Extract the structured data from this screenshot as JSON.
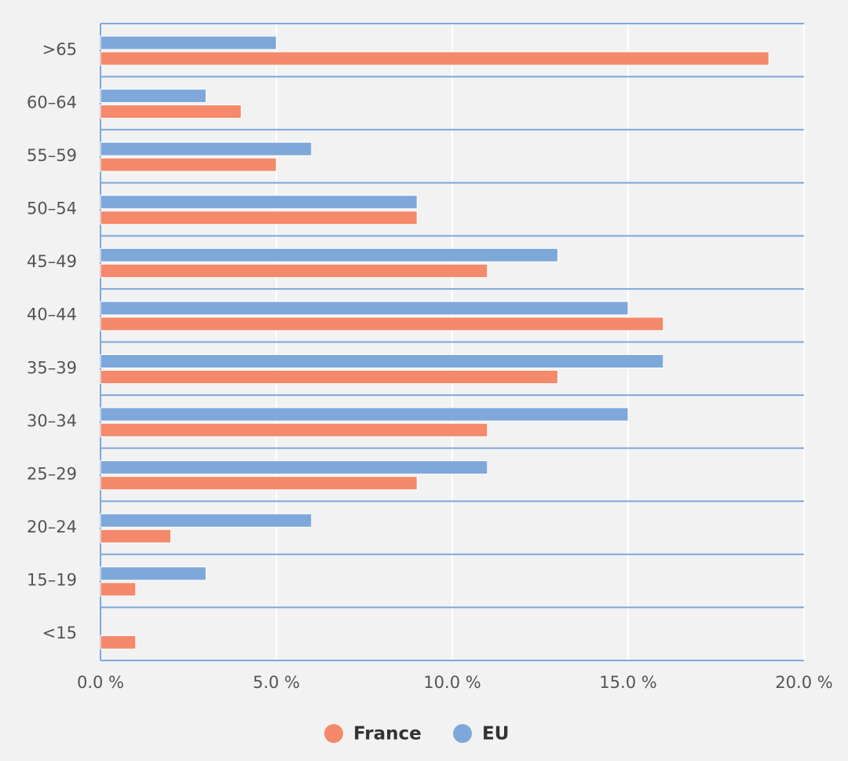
{
  "chart_data": {
    "type": "bar",
    "orientation": "horizontal",
    "categories": [
      ">65",
      "60–64",
      "55–59",
      "50–54",
      "45–49",
      "40–44",
      "35–39",
      "30–34",
      "25–29",
      "20–24",
      "15–19",
      "<15"
    ],
    "series": [
      {
        "name": "France",
        "color": "#f4896b",
        "values": [
          19,
          4,
          5,
          9,
          11,
          16,
          13,
          11,
          9,
          2,
          1,
          1
        ]
      },
      {
        "name": "EU",
        "color": "#7ea8da",
        "values": [
          5,
          3,
          6,
          9,
          13,
          15,
          16,
          15,
          11,
          6,
          3,
          null
        ]
      }
    ],
    "xlim": [
      0,
      20
    ],
    "xticks": [
      {
        "value": 0,
        "label": "0.0 %"
      },
      {
        "value": 5,
        "label": "5.0 %"
      },
      {
        "value": 10,
        "label": "10.0 %"
      },
      {
        "value": 15,
        "label": "15.0 %"
      },
      {
        "value": 20,
        "label": "20.0 %"
      }
    ],
    "grid": true,
    "legend": "bottom"
  }
}
